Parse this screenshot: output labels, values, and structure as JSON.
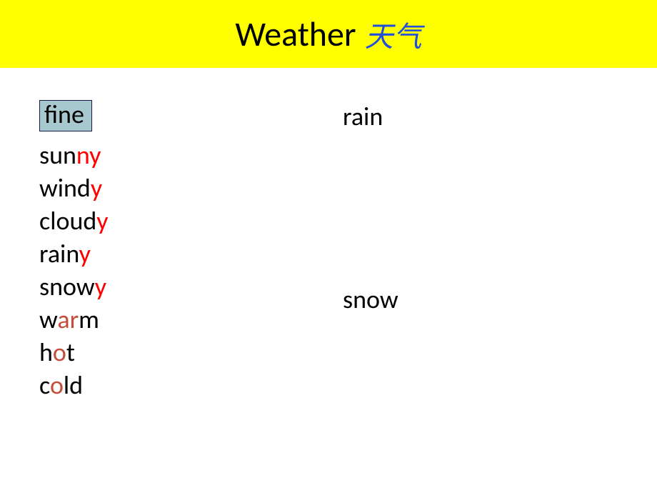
{
  "header": {
    "title_en": "Weather",
    "title_cn": "天气",
    "bg_color": "#ffff00",
    "title_en_color": "#000000",
    "title_cn_color": "#1f4fdc"
  },
  "fine_box": {
    "text": "fine",
    "bg_color": "#a7c8ce",
    "text_color": "#000000",
    "border_color": "#1a1a4a"
  },
  "left_words": [
    {
      "parts": [
        {
          "t": "sun",
          "c": "#000000"
        },
        {
          "t": "ny",
          "c": "#ff0000"
        }
      ]
    },
    {
      "parts": [
        {
          "t": "wind",
          "c": "#000000"
        },
        {
          "t": "y",
          "c": "#ff0000"
        }
      ]
    },
    {
      "parts": [
        {
          "t": "cloud",
          "c": "#000000"
        },
        {
          "t": "y",
          "c": "#ff0000"
        }
      ]
    },
    {
      "parts": [
        {
          "t": "rain",
          "c": "#000000"
        },
        {
          "t": "y",
          "c": "#ff0000"
        }
      ]
    },
    {
      "parts": [
        {
          "t": "snow",
          "c": "#000000"
        },
        {
          "t": "y",
          "c": "#ff0000"
        }
      ]
    },
    {
      "parts": [
        {
          "t": "w",
          "c": "#000000"
        },
        {
          "t": "ar",
          "c": "#c44d3c"
        },
        {
          "t": "m",
          "c": "#000000"
        }
      ]
    },
    {
      "parts": [
        {
          "t": "h",
          "c": "#000000"
        },
        {
          "t": "o",
          "c": "#c44d3c"
        },
        {
          "t": "t",
          "c": "#000000"
        }
      ]
    },
    {
      "parts": [
        {
          "t": "c",
          "c": "#000000"
        },
        {
          "t": "o",
          "c": "#c44d3c"
        },
        {
          "t": "ld",
          "c": "#000000"
        }
      ]
    }
  ],
  "right_words": {
    "rain": "rain",
    "snow": "snow",
    "text_color": "#000000"
  }
}
